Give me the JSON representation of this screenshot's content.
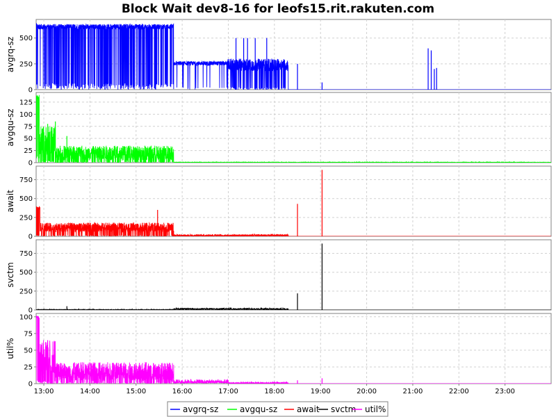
{
  "chart_data": {
    "type": "line",
    "title": "Block Wait dev8-16 for leofs15.rit.rakuten.com",
    "x_axis": {
      "unit": "time",
      "range": [
        "12:50",
        "24:00"
      ],
      "tick_labels": [
        "13:00",
        "14:00",
        "15:00",
        "16:00",
        "17:00",
        "18:00",
        "19:00",
        "20:00",
        "21:00",
        "22:00",
        "23:00"
      ]
    },
    "grid": true,
    "legend_position": "bottom-center",
    "panels": [
      {
        "ylabel": "avgrq-sz",
        "series": "avgrq-sz",
        "color": "#0000ff",
        "ylim": [
          0,
          680
        ],
        "yticks": [
          0,
          250,
          500
        ],
        "segments": [
          {
            "start": "12:50",
            "end": "12:51",
            "base": 640,
            "amp": 5,
            "density": 1.0,
            "spikeDown": true
          },
          {
            "start": "12:51",
            "end": "15:49",
            "base": 610,
            "amp": 25,
            "density": 0.55,
            "spikeDown": true
          },
          {
            "start": "15:49",
            "end": "16:59",
            "base": 255,
            "amp": 20,
            "density": 0.1,
            "spikeDown": true
          },
          {
            "start": "16:59",
            "end": "18:18",
            "base": 240,
            "amp": 60,
            "density": 0.5,
            "spikeDown": true
          },
          {
            "start": "18:18",
            "end": "24:00",
            "base": 0,
            "amp": 0,
            "density": 0,
            "spikeDown": false
          }
        ],
        "spikes": [
          {
            "x": "17:10",
            "y": 500
          },
          {
            "x": "17:20",
            "y": 500
          },
          {
            "x": "17:25",
            "y": 500
          },
          {
            "x": "17:35",
            "y": 500
          },
          {
            "x": "17:50",
            "y": 500
          },
          {
            "x": "18:05",
            "y": 280
          },
          {
            "x": "18:30",
            "y": 250
          },
          {
            "x": "19:02",
            "y": 70
          },
          {
            "x": "21:20",
            "y": 400
          },
          {
            "x": "21:24",
            "y": 380
          },
          {
            "x": "21:28",
            "y": 200
          },
          {
            "x": "21:31",
            "y": 210
          }
        ]
      },
      {
        "ylabel": "avgqu-sz",
        "series": "avgqu-sz",
        "color": "#00ff00",
        "ylim": [
          0,
          145
        ],
        "yticks": [
          0,
          25,
          50,
          75,
          100,
          125
        ],
        "segments": [
          {
            "start": "12:50",
            "end": "12:54",
            "base": 135,
            "amp": 5,
            "density": 1.0,
            "spikeDown": true
          },
          {
            "start": "12:54",
            "end": "13:15",
            "base": 45,
            "amp": 30,
            "density": 0.7,
            "spikeDown": true
          },
          {
            "start": "13:15",
            "end": "15:49",
            "base": 20,
            "amp": 15,
            "density": 0.6,
            "spikeDown": true
          },
          {
            "start": "15:49",
            "end": "24:00",
            "base": 0.5,
            "amp": 0.5,
            "density": 0,
            "spikeDown": false
          }
        ],
        "spikes": [
          {
            "x": "13:05",
            "y": 80
          },
          {
            "x": "13:15",
            "y": 85
          },
          {
            "x": "13:30",
            "y": 55
          }
        ]
      },
      {
        "ylabel": "await",
        "series": "await",
        "color": "#ff0000",
        "ylim": [
          0,
          930
        ],
        "yticks": [
          0,
          250,
          500,
          750
        ],
        "segments": [
          {
            "start": "12:50",
            "end": "12:55",
            "base": 370,
            "amp": 30,
            "density": 1.0,
            "spikeDown": true
          },
          {
            "start": "12:55",
            "end": "15:49",
            "base": 120,
            "amp": 60,
            "density": 0.6,
            "spikeDown": true
          },
          {
            "start": "15:49",
            "end": "18:18",
            "base": 8,
            "amp": 6,
            "density": 0.3,
            "spikeDown": false
          },
          {
            "start": "18:18",
            "end": "24:00",
            "base": 0,
            "amp": 0,
            "density": 0,
            "spikeDown": false
          }
        ],
        "spikes": [
          {
            "x": "15:28",
            "y": 350
          },
          {
            "x": "18:30",
            "y": 430
          },
          {
            "x": "19:02",
            "y": 880
          }
        ]
      },
      {
        "ylabel": "svctm",
        "series": "svctm",
        "color": "#000000",
        "ylim": [
          0,
          930
        ],
        "yticks": [
          0,
          250,
          500,
          750
        ],
        "segments": [
          {
            "start": "12:50",
            "end": "15:49",
            "base": 3,
            "amp": 3,
            "density": 0.05,
            "spikeDown": false
          },
          {
            "start": "15:49",
            "end": "18:18",
            "base": 8,
            "amp": 6,
            "density": 0.3,
            "spikeDown": false
          },
          {
            "start": "18:18",
            "end": "24:00",
            "base": 0,
            "amp": 0,
            "density": 0,
            "spikeDown": false
          }
        ],
        "spikes": [
          {
            "x": "13:30",
            "y": 50
          },
          {
            "x": "18:30",
            "y": 220
          },
          {
            "x": "19:02",
            "y": 880
          }
        ]
      },
      {
        "ylabel": "util%",
        "series": "util%",
        "color": "#ff00ff",
        "ylim": [
          0,
          105
        ],
        "yticks": [
          0,
          25,
          50,
          75,
          100
        ],
        "segments": [
          {
            "start": "12:50",
            "end": "12:54",
            "base": 100,
            "amp": 2,
            "density": 1.0,
            "spikeDown": true
          },
          {
            "start": "12:54",
            "end": "13:15",
            "base": 40,
            "amp": 25,
            "density": 0.7,
            "spikeDown": true
          },
          {
            "start": "13:15",
            "end": "15:49",
            "base": 18,
            "amp": 14,
            "density": 0.6,
            "spikeDown": true
          },
          {
            "start": "15:49",
            "end": "17:00",
            "base": 2,
            "amp": 1.5,
            "density": 0.2,
            "spikeDown": false
          },
          {
            "start": "17:00",
            "end": "18:18",
            "base": 0.8,
            "amp": 0.8,
            "density": 0.1,
            "spikeDown": false
          },
          {
            "start": "18:18",
            "end": "24:00",
            "base": 0,
            "amp": 0,
            "density": 0,
            "spikeDown": false
          }
        ],
        "spikes": [
          {
            "x": "13:05",
            "y": 65
          },
          {
            "x": "18:30",
            "y": 5
          },
          {
            "x": "19:02",
            "y": 8
          }
        ]
      }
    ],
    "legend": [
      {
        "name": "avgrq-sz",
        "color": "#0000ff"
      },
      {
        "name": "avgqu-sz",
        "color": "#00ff00"
      },
      {
        "name": "await",
        "color": "#ff0000"
      },
      {
        "name": "svctm",
        "color": "#000000"
      },
      {
        "name": "util%",
        "color": "#ff00ff"
      }
    ]
  }
}
